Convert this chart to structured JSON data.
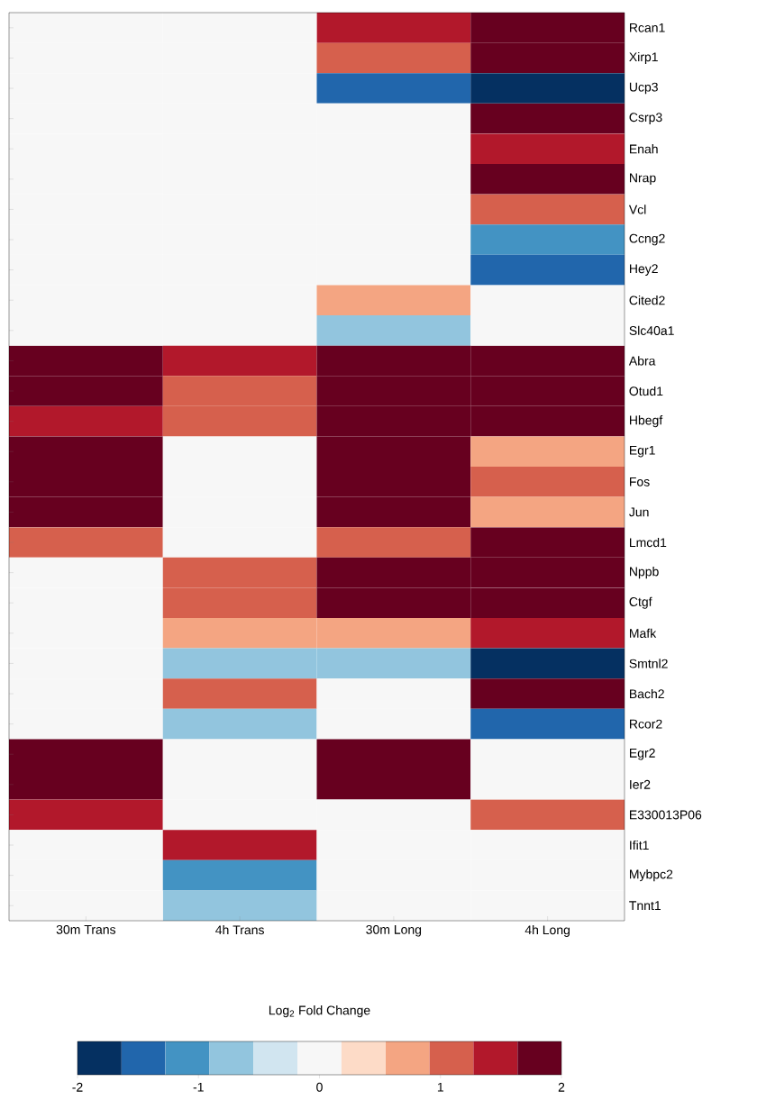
{
  "chart_data": {
    "type": "heatmap",
    "categories": [
      "30m Trans",
      "4h Trans",
      "30m Long",
      "4h Long"
    ],
    "y_categories": [
      "Rcan1",
      "Xirp1",
      "Ucp3",
      "Csrp3",
      "Enah",
      "Nrap",
      "Vcl",
      "Ccng2",
      "Hey2",
      "Cited2",
      "Slc40a1",
      "Abra",
      "Otud1",
      "Hbegf",
      "Egr1",
      "Fos",
      "Jun",
      "Lmcd1",
      "Nppb",
      "Ctgf",
      "Mafk",
      "Smtnl2",
      "Bach2",
      "Rcor2",
      "Egr2",
      "Ier2",
      "E330013P06",
      "Ifit1",
      "Mybpc2",
      "Tnnt1"
    ],
    "cells": [
      [
        0,
        0,
        1.45,
        1.8
      ],
      [
        0,
        0,
        1.1,
        1.8
      ],
      [
        0,
        0,
        -1.45,
        -1.8
      ],
      [
        0,
        0,
        0,
        1.8
      ],
      [
        0,
        0,
        0,
        1.45
      ],
      [
        0,
        0,
        0,
        1.8
      ],
      [
        0,
        0,
        0,
        1.1
      ],
      [
        0,
        0,
        0,
        -1.1
      ],
      [
        0,
        0,
        0,
        -1.45
      ],
      [
        0,
        0,
        0.7,
        0
      ],
      [
        0,
        0,
        -0.7,
        0
      ],
      [
        1.8,
        1.45,
        1.8,
        1.8
      ],
      [
        1.8,
        1.1,
        1.8,
        1.8
      ],
      [
        1.45,
        1.1,
        1.8,
        1.8
      ],
      [
        1.8,
        0,
        1.8,
        0.7
      ],
      [
        1.8,
        0,
        1.8,
        1.1
      ],
      [
        1.8,
        0,
        1.8,
        0.7
      ],
      [
        1.1,
        0,
        1.1,
        1.8
      ],
      [
        0,
        1.1,
        1.8,
        1.8
      ],
      [
        0,
        1.1,
        1.8,
        1.8
      ],
      [
        0,
        0.7,
        0.7,
        1.45
      ],
      [
        0,
        -0.7,
        -0.7,
        -1.8
      ],
      [
        0,
        1.1,
        0,
        1.8
      ],
      [
        0,
        -0.7,
        0,
        -1.45
      ],
      [
        1.8,
        0,
        1.8,
        0
      ],
      [
        1.8,
        0,
        1.8,
        0
      ],
      [
        1.45,
        0,
        0,
        1.1
      ],
      [
        0,
        1.45,
        0,
        0
      ],
      [
        0,
        -1.1,
        0,
        0
      ],
      [
        0,
        -0.7,
        0,
        0
      ]
    ],
    "clabel": "Log$_{2}$ Fold Change",
    "clim": [
      -2,
      2
    ],
    "cticks": [
      -2,
      -1,
      0,
      1,
      2
    ]
  }
}
